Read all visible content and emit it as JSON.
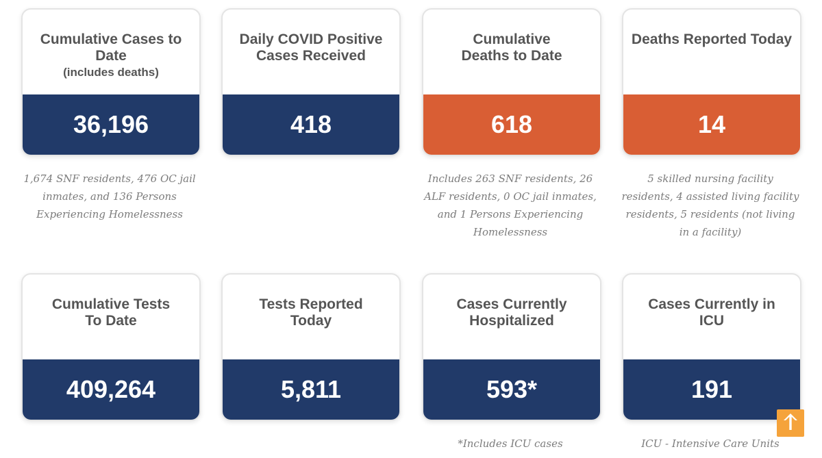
{
  "cards": [
    {
      "title": "Cumulative Cases to Date",
      "subtitle": "(includes deaths)",
      "value": "36,196",
      "color": "#213a69",
      "note": "1,674 SNF residents, 476 OC jail inmates, and 136 Persons Experiencing Homelessness"
    },
    {
      "title": "Daily COVID Positive Cases Received",
      "value": "418",
      "color": "#213a69"
    },
    {
      "title": "Cumulative Deaths to Date",
      "value": "618",
      "color": "#d95e34",
      "note": "Includes 263 SNF residents, 26 ALF residents, 0 OC jail inmates, and 1 Persons Experiencing Homelessness"
    },
    {
      "title": "Deaths Reported Today",
      "value": "14",
      "color": "#d95e34",
      "note": "5 skilled nursing facility residents, 4 assisted living facility residents, 5 residents (not living in a facility)"
    },
    {
      "title": "Cumulative Tests To Date",
      "value": "409,264",
      "color": "#213a69"
    },
    {
      "title": "Tests Reported Today",
      "value": "5,811",
      "color": "#213a69"
    },
    {
      "title": "Cases Currently Hospitalized",
      "value": "593*",
      "color": "#213a69",
      "note": "*Includes ICU cases"
    },
    {
      "title": "Cases Currently in ICU",
      "value": "191",
      "color": "#213a69",
      "note": "ICU - Intensive Care Units"
    }
  ],
  "scroll_top_icon": "arrow-up-icon",
  "scroll_top_color": "#f5a33b"
}
